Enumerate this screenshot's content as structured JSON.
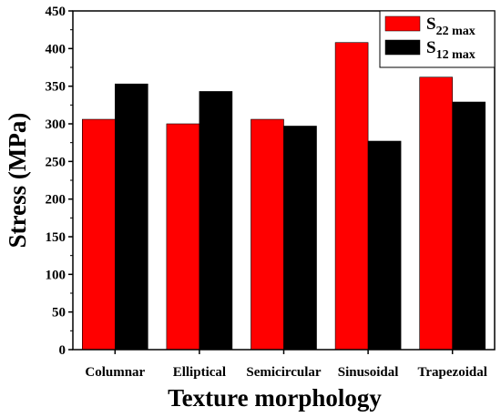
{
  "chart_data": {
    "type": "bar",
    "xlabel": "Texture morphology",
    "ylabel": "Stress (MPa)",
    "ylim": [
      0,
      450
    ],
    "yticks": [
      0,
      50,
      100,
      150,
      200,
      250,
      300,
      350,
      400,
      450
    ],
    "categories": [
      "Columnar",
      "Elliptical",
      "Semicircular",
      "Sinusoidal",
      "Trapezoidal"
    ],
    "legend_position": "top-right",
    "grid": false,
    "series": [
      {
        "name": "S",
        "subscript": "22 max",
        "color": "#ff0000",
        "values": [
          306,
          300,
          306,
          408,
          362
        ]
      },
      {
        "name": "S",
        "subscript": "12 max",
        "color": "#000000",
        "values": [
          353,
          343,
          297,
          277,
          329
        ]
      }
    ]
  }
}
